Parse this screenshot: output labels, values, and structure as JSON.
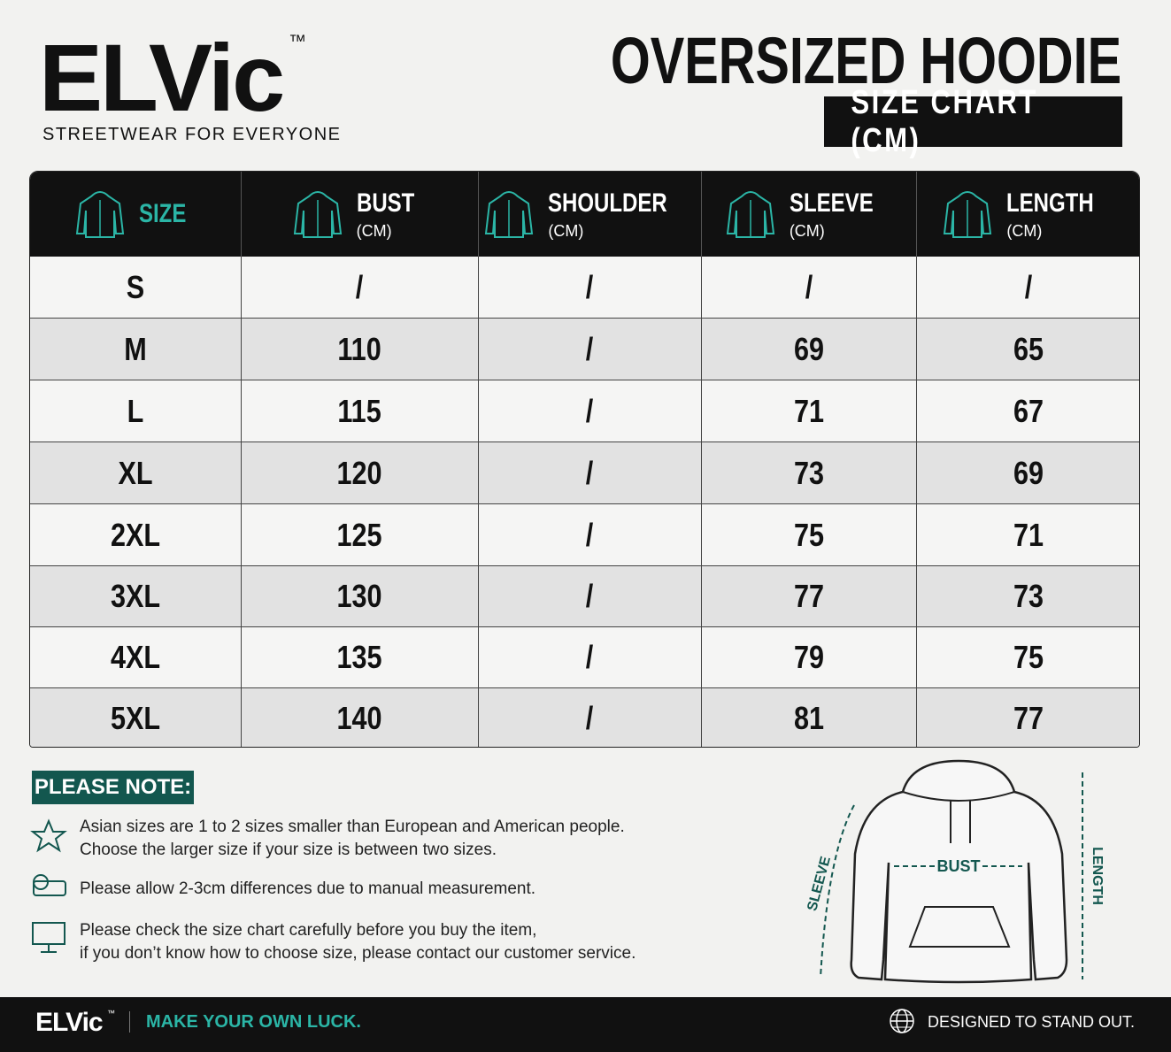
{
  "brand": {
    "name": "ELVic",
    "trademark": "™",
    "tagline": "STREETWEAR FOR EVERYONE"
  },
  "header": {
    "title": "OVERSIZED HOODIE",
    "subtitle": "SIZE CHART (CM)"
  },
  "table": {
    "columns": [
      {
        "label": "SIZE"
      },
      {
        "label": "BUST",
        "unit": "(CM)"
      },
      {
        "label": "SHOULDER",
        "unit": "(CM)"
      },
      {
        "label": "SLEEVE",
        "unit": "(CM)"
      },
      {
        "label": "LENGTH",
        "unit": "(CM)"
      }
    ],
    "rows": [
      [
        "S",
        "/",
        "/",
        "/",
        "/"
      ],
      [
        "M",
        "110",
        "/",
        "69",
        "65"
      ],
      [
        "L",
        "115",
        "/",
        "71",
        "67"
      ],
      [
        "XL",
        "120",
        "/",
        "73",
        "69"
      ],
      [
        "2XL",
        "125",
        "/",
        "75",
        "71"
      ],
      [
        "3XL",
        "130",
        "/",
        "77",
        "73"
      ],
      [
        "4XL",
        "135",
        "/",
        "79",
        "75"
      ],
      [
        "5XL",
        "140",
        "/",
        "81",
        "77"
      ]
    ]
  },
  "notes": {
    "title": "PLEASE NOTE:",
    "items": [
      {
        "lines": [
          "Asian sizes are 1 to 2 sizes smaller than European and American people.",
          "Choose the larger size if your size is between two sizes."
        ]
      },
      {
        "lines": [
          "Please allow 2-3cm differences due to manual measurement."
        ]
      },
      {
        "lines": [
          "Please check the size chart carefully before you buy the item,",
          "if you don’t know how to choose size, please contact our customer service."
        ]
      }
    ]
  },
  "diagram": {
    "sleeve": "SLEEVE",
    "bust": "BUST",
    "length": "LENGTH"
  },
  "footer": {
    "brand": "ELVic",
    "trademark": "™",
    "slogan": "MAKE YOUR OWN LUCK.",
    "motto": "DESIGNED TO STAND OUT."
  }
}
